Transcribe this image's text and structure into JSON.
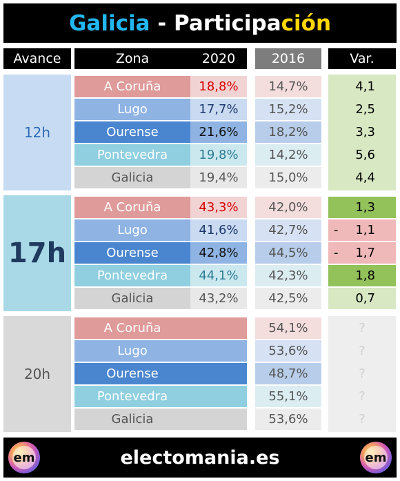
{
  "title": {
    "part1": "Galicia",
    "sep": " - ",
    "part2": "Participa",
    "part3": "ción"
  },
  "headers": {
    "avance": "Avance",
    "zona": "Zona",
    "y2020": "2020",
    "y2016": "2016",
    "var": "Var."
  },
  "colors": {
    "accent_cyan": "#22b7f0",
    "accent_yellow": "#ffd700",
    "red_value": "#d40000",
    "block_12h": "#c7dcf3",
    "block_17h": "#a9d9e6",
    "block_20h": "#d9d9d9",
    "var_light_green": "#d7e8c3",
    "var_dark_green": "#93c15a",
    "var_red": "#f0b9b9",
    "var_empty": "#eeeeee"
  },
  "blocks": [
    {
      "avance": "12h",
      "rows": [
        {
          "zona": "A Coruña",
          "v2020": "18,8%",
          "v2016": "14,7%",
          "var_sign": "",
          "var": "4,1"
        },
        {
          "zona": "Lugo",
          "v2020": "17,7%",
          "v2016": "15,2%",
          "var_sign": "",
          "var": "2,5"
        },
        {
          "zona": "Ourense",
          "v2020": "21,6%",
          "v2016": "18,2%",
          "var_sign": "",
          "var": "3,3"
        },
        {
          "zona": "Pontevedra",
          "v2020": "19,8%",
          "v2016": "14,2%",
          "var_sign": "",
          "var": "5,6"
        },
        {
          "zona": "Galicia",
          "v2020": "19,4%",
          "v2016": "15,0%",
          "var_sign": "",
          "var": "4,4"
        }
      ]
    },
    {
      "avance": "17h",
      "rows": [
        {
          "zona": "A Coruña",
          "v2020": "43,3%",
          "v2016": "42,0%",
          "var_sign": "",
          "var": "1,3"
        },
        {
          "zona": "Lugo",
          "v2020": "41,6%",
          "v2016": "42,7%",
          "var_sign": "-",
          "var": "1,1"
        },
        {
          "zona": "Ourense",
          "v2020": "42,8%",
          "v2016": "44,5%",
          "var_sign": "-",
          "var": "1,7"
        },
        {
          "zona": "Pontevedra",
          "v2020": "44,1%",
          "v2016": "42,3%",
          "var_sign": "",
          "var": "1,8"
        },
        {
          "zona": "Galicia",
          "v2020": "43,2%",
          "v2016": "42,5%",
          "var_sign": "",
          "var": "0,7"
        }
      ]
    },
    {
      "avance": "20h",
      "rows": [
        {
          "zona": "A Coruña",
          "v2020": "",
          "v2016": "54,1%",
          "var_sign": "",
          "var": "?"
        },
        {
          "zona": "Lugo",
          "v2020": "",
          "v2016": "53,6%",
          "var_sign": "",
          "var": "?"
        },
        {
          "zona": "Ourense",
          "v2020": "",
          "v2016": "48,7%",
          "var_sign": "",
          "var": "?"
        },
        {
          "zona": "Pontevedra",
          "v2020": "",
          "v2016": "55,1%",
          "var_sign": "",
          "var": "?"
        },
        {
          "zona": "Galicia",
          "v2020": "",
          "v2016": "53,6%",
          "var_sign": "",
          "var": "?"
        }
      ]
    }
  ],
  "footer": {
    "site": "electomania.es",
    "logo_text": "em"
  }
}
